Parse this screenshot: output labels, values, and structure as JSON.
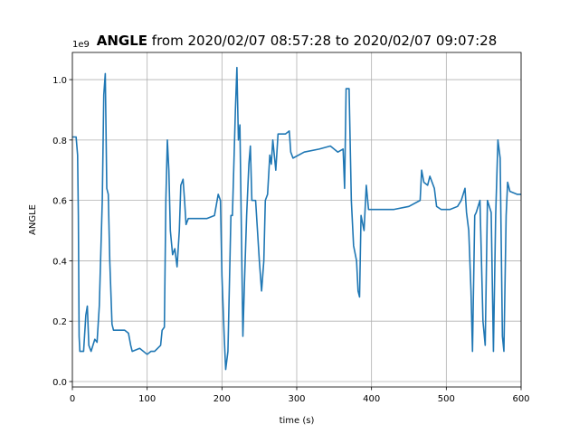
{
  "chart_data": {
    "type": "line",
    "title_parts": [
      "ANGLE",
      "from 2020/02/07 08:57:28 to 2020/02/07 09:07:28"
    ],
    "xlabel": "time (s)",
    "ylabel": "ANGLE",
    "y_offset_text": "1e9",
    "grid": true,
    "xlim": [
      0,
      600
    ],
    "ylim": [
      -0.018,
      1.09
    ],
    "xticks": [
      0,
      100,
      200,
      300,
      400,
      500,
      600
    ],
    "yticks": [
      {
        "value": 0,
        "label": "0.0"
      },
      0.2,
      0.4,
      0.6,
      0.8,
      {
        "value": 1,
        "label": "1.0"
      }
    ],
    "series": [
      {
        "name": "ANGLE",
        "color": "#1f77b4",
        "x": [
          0,
          5,
          7,
          8,
          9,
          10,
          15,
          18,
          20,
          22,
          25,
          30,
          33,
          36,
          40,
          42,
          44,
          46,
          48,
          50,
          53,
          55,
          60,
          70,
          75,
          78,
          80,
          90,
          100,
          105,
          110,
          118,
          120,
          123,
          125,
          127,
          129,
          131,
          134,
          137,
          140,
          143,
          145,
          148,
          150,
          152,
          155,
          170,
          180,
          190,
          195,
          198,
          200,
          203,
          205,
          208,
          212,
          214,
          218,
          220,
          222,
          224,
          226,
          228,
          230,
          233,
          236,
          238,
          240,
          245,
          250,
          253,
          256,
          258,
          261,
          264,
          266,
          268,
          272,
          275,
          285,
          290,
          292,
          295,
          310,
          330,
          345,
          355,
          362,
          364,
          366,
          370,
          373,
          376,
          380,
          382,
          384,
          386,
          390,
          393,
          396,
          410,
          430,
          450,
          465,
          467,
          470,
          475,
          478,
          484,
          487,
          493,
          505,
          515,
          520,
          525,
          527,
          530,
          533,
          535,
          538,
          540,
          545,
          549,
          552,
          555,
          560,
          563,
          566,
          569,
          572,
          575,
          577,
          580,
          582,
          585,
          595,
          600
        ],
        "values": [
          0.81,
          0.81,
          0.75,
          0.55,
          0.15,
          0.1,
          0.1,
          0.22,
          0.25,
          0.12,
          0.1,
          0.14,
          0.13,
          0.25,
          0.6,
          0.95,
          1.02,
          0.64,
          0.62,
          0.4,
          0.19,
          0.17,
          0.17,
          0.17,
          0.16,
          0.12,
          0.1,
          0.11,
          0.09,
          0.1,
          0.1,
          0.12,
          0.17,
          0.18,
          0.6,
          0.8,
          0.7,
          0.5,
          0.42,
          0.44,
          0.38,
          0.5,
          0.65,
          0.67,
          0.6,
          0.52,
          0.54,
          0.54,
          0.54,
          0.55,
          0.62,
          0.6,
          0.35,
          0.15,
          0.04,
          0.1,
          0.55,
          0.55,
          0.9,
          1.04,
          0.8,
          0.85,
          0.5,
          0.15,
          0.32,
          0.55,
          0.72,
          0.78,
          0.6,
          0.6,
          0.4,
          0.3,
          0.4,
          0.6,
          0.62,
          0.75,
          0.72,
          0.8,
          0.7,
          0.82,
          0.82,
          0.83,
          0.76,
          0.74,
          0.76,
          0.77,
          0.78,
          0.76,
          0.77,
          0.64,
          0.97,
          0.97,
          0.6,
          0.45,
          0.4,
          0.3,
          0.28,
          0.55,
          0.5,
          0.65,
          0.57,
          0.57,
          0.57,
          0.58,
          0.6,
          0.7,
          0.66,
          0.65,
          0.68,
          0.64,
          0.58,
          0.57,
          0.57,
          0.58,
          0.6,
          0.64,
          0.56,
          0.5,
          0.3,
          0.1,
          0.55,
          0.56,
          0.6,
          0.2,
          0.12,
          0.6,
          0.56,
          0.1,
          0.55,
          0.8,
          0.74,
          0.15,
          0.1,
          0.55,
          0.66,
          0.63,
          0.62,
          0.62
        ]
      }
    ]
  }
}
